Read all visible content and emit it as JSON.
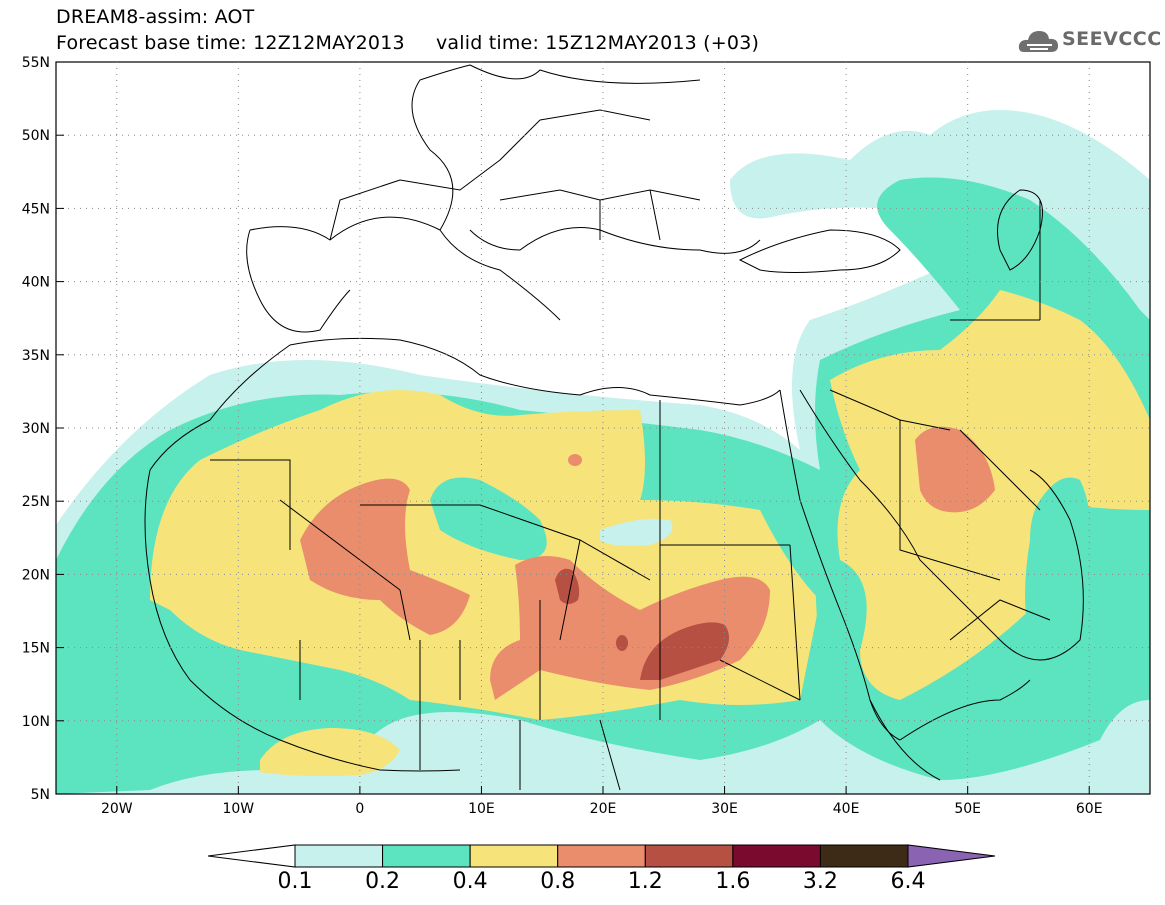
{
  "header": {
    "line1": "DREAM8-assim: AOT",
    "line2": "Forecast base time: 12Z12MAY2013     valid time: 15Z12MAY2013 (+03)"
  },
  "logo": {
    "text": "SEEVCCC",
    "icon": "cloud-icon"
  },
  "map": {
    "lat_labels": [
      "55N",
      "50N",
      "45N",
      "40N",
      "35N",
      "30N",
      "25N",
      "20N",
      "15N",
      "10N",
      "5N"
    ],
    "lon_labels": [
      "20W",
      "10W",
      "0",
      "10E",
      "20E",
      "30E",
      "40E",
      "50E",
      "60E"
    ],
    "lon_range": [
      -25,
      65
    ],
    "lat_range": [
      5,
      55
    ],
    "grid": "dotted"
  },
  "colorbar": {
    "levels": [
      "0.1",
      "0.2",
      "0.4",
      "0.8",
      "1.2",
      "1.6",
      "3.2",
      "6.4"
    ],
    "colors": [
      "#c6f1ec",
      "#5ce3bf",
      "#f6e47a",
      "#ea8d6d",
      "#b55043",
      "#7a0b2f",
      "#3d2a17",
      "#8a63b2"
    ],
    "under_color": "#ffffff"
  }
}
